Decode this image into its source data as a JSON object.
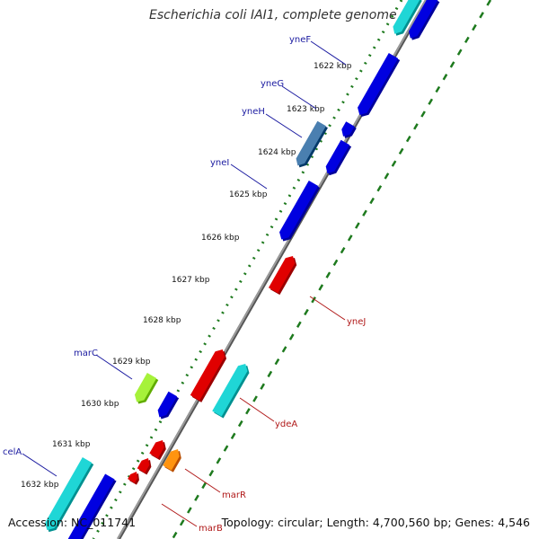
{
  "title": "Escherichia coli IAI1, complete genome",
  "footer": {
    "accession": "Accession: NC_011741",
    "topology": "Topology: circular; Length: 4,700,560 bp; Genes: 4,546"
  },
  "scale_labels": [
    "1622 kbp",
    "1623 kbp",
    "1624 kbp",
    "1625 kbp",
    "1626 kbp",
    "1627 kbp",
    "1628 kbp",
    "1629 kbp",
    "1630 kbp",
    "1631 kbp",
    "1632 kbp"
  ],
  "gene_labels": [
    {
      "text": "yneF",
      "strand": "forward"
    },
    {
      "text": "yneG",
      "strand": "forward"
    },
    {
      "text": "yneH",
      "strand": "forward"
    },
    {
      "text": "yneI",
      "strand": "forward"
    },
    {
      "text": "marC",
      "strand": "forward"
    },
    {
      "text": "celA",
      "strand": "forward"
    },
    {
      "text": "yneJ",
      "strand": "reverse"
    },
    {
      "text": "ydeA",
      "strand": "reverse"
    },
    {
      "text": "marR",
      "strand": "reverse"
    },
    {
      "text": "marB",
      "strand": "reverse"
    }
  ],
  "colors": {
    "forward_label": "#1a1aa0",
    "reverse_label": "#b01818",
    "cds_forward": "#0000e0",
    "cds_reverse": "#e00000",
    "rna": "#1fd6d6",
    "pseudo": "#4a7fb0",
    "hypothetical": "#a6f23a",
    "orange": "#ff9410",
    "backbone": "#7a7a7a",
    "gc_dots": "#1e7a1e"
  }
}
